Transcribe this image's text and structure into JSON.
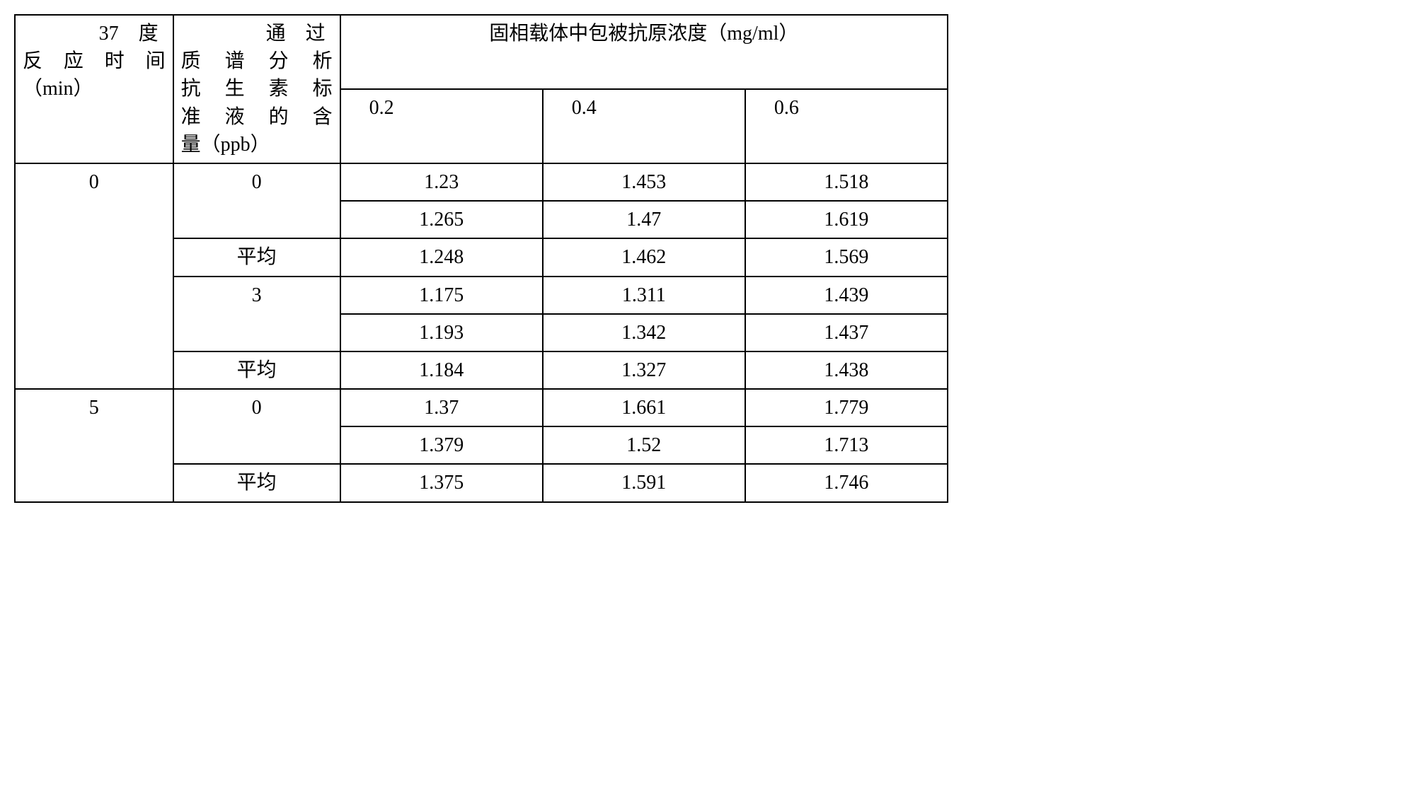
{
  "table": {
    "header": {
      "col1_line1": "37　度",
      "col1_line2": "反应时间",
      "col1_line3": "（min）",
      "col2_line1": "通　过",
      "col2_line2": "质谱分析",
      "col2_line3": "抗生素标",
      "col2_line4": "准液的含",
      "col2_line5": "量（ppb）",
      "span_title": "固相载体中包被抗原浓度（mg/ml）",
      "c1": "0.2",
      "c2": "0.4",
      "c3": "0.6"
    },
    "labels": {
      "avg": "平均"
    },
    "rows": [
      {
        "time": "0",
        "ppb": "0",
        "v1": "1.23",
        "v2": "1.453",
        "v3": "1.518"
      },
      {
        "time": "",
        "ppb": "",
        "v1": "1.265",
        "v2": "1.47",
        "v3": "1.619"
      },
      {
        "time": "",
        "ppb": "avg",
        "v1": "1.248",
        "v2": "1.462",
        "v3": "1.569"
      },
      {
        "time": "",
        "ppb": "3",
        "v1": "1.175",
        "v2": "1.311",
        "v3": "1.439"
      },
      {
        "time": "",
        "ppb": "",
        "v1": "1.193",
        "v2": "1.342",
        "v3": "1.437"
      },
      {
        "time": "",
        "ppb": "avg",
        "v1": "1.184",
        "v2": "1.327",
        "v3": "1.438"
      },
      {
        "time": "5",
        "ppb": "0",
        "v1": "1.37",
        "v2": "1.661",
        "v3": "1.779"
      },
      {
        "time": "",
        "ppb": "",
        "v1": "1.379",
        "v2": "1.52",
        "v3": "1.713"
      },
      {
        "time": "",
        "ppb": "avg",
        "v1": "1.375",
        "v2": "1.591",
        "v3": "1.746"
      }
    ]
  },
  "style": {
    "border_color": "#000000",
    "text_color": "#000000",
    "background": "#ffffff",
    "font_size_pt": 21
  }
}
